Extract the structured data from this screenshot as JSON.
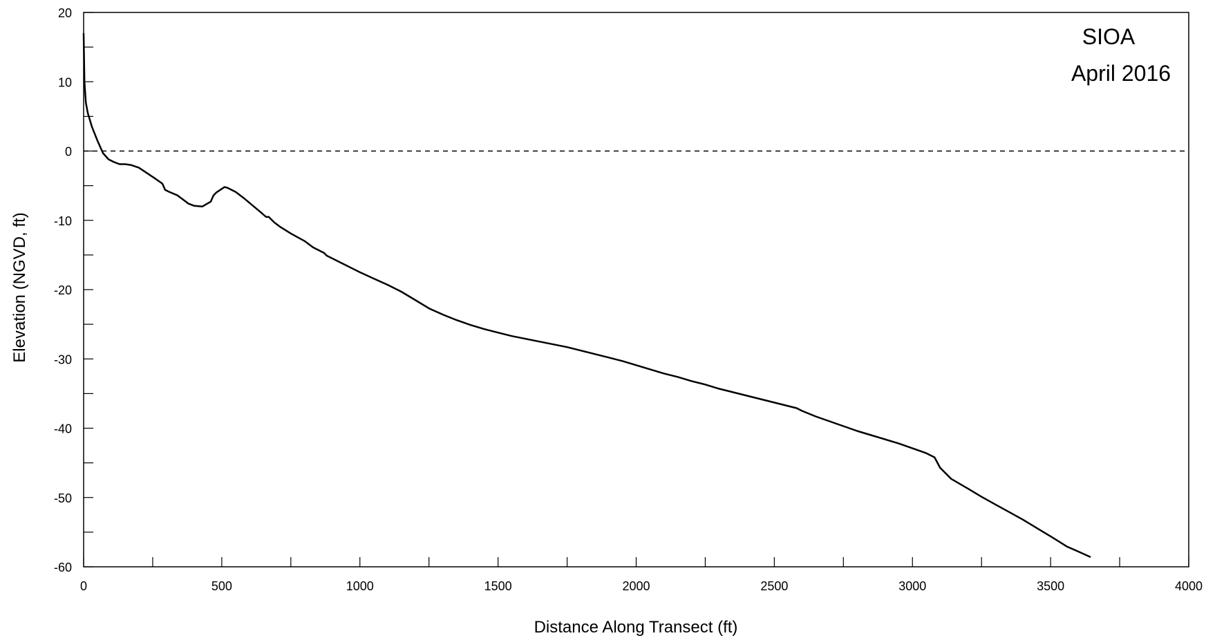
{
  "chart_data": {
    "type": "line",
    "xlabel": "Distance Along Transect (ft)",
    "ylabel": "Elevation (NGVD, ft)",
    "xlim": [
      0,
      4000
    ],
    "ylim": [
      -60,
      20
    ],
    "x_ticks": [
      0,
      500,
      1000,
      1500,
      2000,
      2500,
      3000,
      3500,
      4000
    ],
    "x_tick_labels": [
      "0",
      "500",
      "1000",
      "1500",
      "2000",
      "2500",
      "3000",
      "3500",
      "4000"
    ],
    "y_ticks": [
      20,
      10,
      0,
      -10,
      -20,
      -30,
      -40,
      -50,
      -60
    ],
    "y_tick_labels": [
      "20",
      "10",
      "0",
      "-10",
      "-20",
      "-30",
      "-40",
      "-50",
      "-60"
    ],
    "annotations": [
      "SIOA",
      "April 2016"
    ],
    "grid": false,
    "reference_line": {
      "y": 0,
      "style": "dashed"
    },
    "series": [
      {
        "x": [
          0,
          3,
          8,
          15,
          30,
          50,
          70,
          90,
          110,
          130,
          150,
          170,
          200,
          230,
          260,
          285,
          295,
          310,
          340,
          360,
          380,
          400,
          430,
          460,
          470,
          480,
          510,
          520,
          550,
          580,
          610,
          640,
          660,
          670,
          690,
          710,
          750,
          800,
          830,
          870,
          880,
          900,
          950,
          1000,
          1050,
          1100,
          1150,
          1200,
          1250,
          1300,
          1350,
          1400,
          1450,
          1500,
          1550,
          1600,
          1650,
          1700,
          1750,
          1800,
          1850,
          1900,
          1950,
          2000,
          2050,
          2100,
          2150,
          2200,
          2250,
          2300,
          2350,
          2400,
          2450,
          2500,
          2550,
          2580,
          2600,
          2650,
          2700,
          2750,
          2800,
          2850,
          2900,
          2950,
          3000,
          3050,
          3080,
          3100,
          3140,
          3200,
          3250,
          3300,
          3350,
          3400,
          3450,
          3500,
          3560,
          3600,
          3645
        ],
        "y": [
          17,
          10,
          7,
          5.5,
          3.5,
          1.5,
          -0.3,
          -1.2,
          -1.6,
          -1.9,
          -1.9,
          -2,
          -2.4,
          -3.2,
          -4,
          -4.7,
          -5.6,
          -5.9,
          -6.4,
          -7,
          -7.6,
          -7.9,
          -8,
          -7.3,
          -6.4,
          -6,
          -5.2,
          -5.3,
          -5.9,
          -6.8,
          -7.8,
          -8.8,
          -9.5,
          -9.5,
          -10.3,
          -10.9,
          -11.9,
          -13,
          -13.9,
          -14.7,
          -15.1,
          -15.5,
          -16.5,
          -17.5,
          -18.4,
          -19.3,
          -20.3,
          -21.5,
          -22.7,
          -23.6,
          -24.4,
          -25.1,
          -25.7,
          -26.2,
          -26.7,
          -27.1,
          -27.5,
          -27.9,
          -28.3,
          -28.8,
          -29.3,
          -29.8,
          -30.3,
          -30.9,
          -31.5,
          -32.1,
          -32.6,
          -33.2,
          -33.7,
          -34.3,
          -34.8,
          -35.3,
          -35.8,
          -36.3,
          -36.8,
          -37.1,
          -37.5,
          -38.3,
          -39,
          -39.7,
          -40.4,
          -41,
          -41.6,
          -42.2,
          -42.9,
          -43.6,
          -44.2,
          -45.7,
          -47.3,
          -48.7,
          -49.9,
          -51,
          -52.1,
          -53.2,
          -54.4,
          -55.6,
          -57.1,
          -57.8,
          -58.6
        ]
      }
    ]
  }
}
